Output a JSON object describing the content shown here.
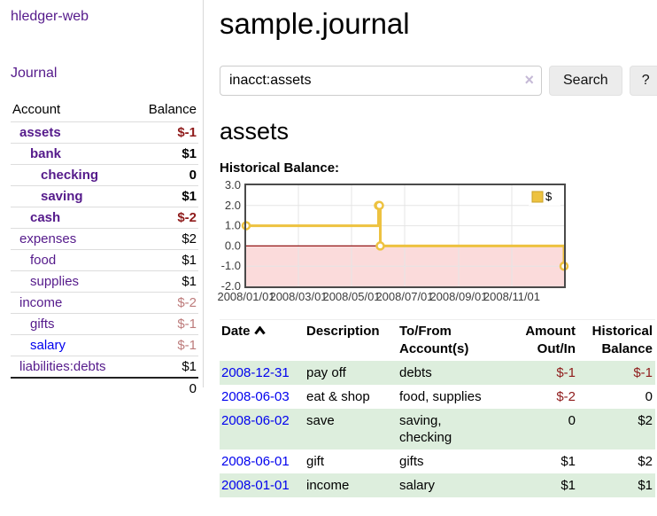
{
  "colors": {
    "link_purple": "#551A8B",
    "link_blue": "#0000EE",
    "negative_dark": "#8f1b1b",
    "negative_soft": "#bd7b7b",
    "row_green": "#ddeedd",
    "chart_line": "#EDC240",
    "chart_negative_fill": "#fbdbdb",
    "chart_zero_line": "#941717"
  },
  "sidebar": {
    "brand": "hledger-web",
    "journal_link": "Journal",
    "accounts_table": {
      "headers": [
        "Account",
        "Balance"
      ],
      "rows": [
        {
          "name": "assets",
          "balance": "$-1",
          "indent": 0,
          "bold": true,
          "neg": "strong"
        },
        {
          "name": "bank",
          "balance": "$1",
          "indent": 1,
          "bold": true,
          "neg": null
        },
        {
          "name": "checking",
          "balance": "0",
          "indent": 2,
          "bold": true,
          "neg": null
        },
        {
          "name": "saving",
          "balance": "$1",
          "indent": 2,
          "bold": true,
          "neg": null
        },
        {
          "name": "cash",
          "balance": "$-2",
          "indent": 1,
          "bold": true,
          "neg": "strong"
        },
        {
          "name": "expenses",
          "balance": "$2",
          "indent": 0,
          "bold": false,
          "neg": null
        },
        {
          "name": "food",
          "balance": "$1",
          "indent": 1,
          "bold": false,
          "neg": null
        },
        {
          "name": "supplies",
          "balance": "$1",
          "indent": 1,
          "bold": false,
          "neg": null
        },
        {
          "name": "income",
          "balance": "$-2",
          "indent": 0,
          "bold": false,
          "neg": "soft"
        },
        {
          "name": "gifts",
          "balance": "$-1",
          "indent": 1,
          "bold": false,
          "neg": "soft"
        },
        {
          "name": "salary",
          "balance": "$-1",
          "indent": 1,
          "bold": false,
          "neg": "soft",
          "unvisited": true
        },
        {
          "name": "liabilities:debts",
          "balance": "$1",
          "indent": 0,
          "bold": false,
          "neg": null
        }
      ],
      "total": "0"
    }
  },
  "main": {
    "title": "sample.journal",
    "search": {
      "value": "inacct:assets",
      "clear_icon": "×",
      "search_button": "Search",
      "help_button": "?"
    },
    "account_heading": "assets",
    "chart_heading": "Historical Balance:"
  },
  "chart_data": {
    "type": "line",
    "style": "step",
    "title": "Historical Balance:",
    "ylim": [
      -2,
      3
    ],
    "grid": true,
    "y_ticks": [
      "3.0",
      "2.0",
      "1.0",
      "0.0",
      "-1.0",
      "-2.0"
    ],
    "x_ticks": [
      {
        "pos": 0.0,
        "label": "2008/01/01"
      },
      {
        "pos": 0.1644,
        "label": "2008/03/01"
      },
      {
        "pos": 0.3315,
        "label": "2008/05/01"
      },
      {
        "pos": 0.4986,
        "label": "2008/07/01"
      },
      {
        "pos": 0.6685,
        "label": "2008/09/01"
      },
      {
        "pos": 0.8356,
        "label": "2008/11/01"
      }
    ],
    "series": [
      {
        "name": "$",
        "color": "#EDC240",
        "points": [
          {
            "date": "2008-01-01",
            "x": 0.0,
            "y": 1
          },
          {
            "date": "2008-06-01",
            "x": 0.4164,
            "y": 2
          },
          {
            "date": "2008-06-02",
            "x": 0.4192,
            "y": 2
          },
          {
            "date": "2008-06-03",
            "x": 0.4219,
            "y": 0
          },
          {
            "date": "2008-12-31",
            "x": 1.0,
            "y": -1
          }
        ]
      }
    ],
    "legend": {
      "label": "$",
      "position": "top-right"
    },
    "negative_region_color": "#fbdbdb",
    "zero_line_color": "#941717"
  },
  "register": {
    "headers": [
      "Date",
      "Description",
      "To/From Account(s)",
      "Amount Out/In",
      "Historical Balance"
    ],
    "sort": {
      "column": "Date",
      "direction": "ascending"
    },
    "rows": [
      {
        "date": "2008-12-31",
        "description": "pay off",
        "accounts": "debts",
        "amount": "$-1",
        "amount_negative": true,
        "balance": "$-1",
        "balance_negative": true
      },
      {
        "date": "2008-06-03",
        "description": "eat & shop",
        "accounts": "food, supplies",
        "amount": "$-2",
        "amount_negative": true,
        "balance": "0",
        "balance_negative": false
      },
      {
        "date": "2008-06-02",
        "description": "save",
        "accounts": "saving, checking",
        "amount": "0",
        "amount_negative": false,
        "balance": "$2",
        "balance_negative": false
      },
      {
        "date": "2008-06-01",
        "description": "gift",
        "accounts": "gifts",
        "amount": "$1",
        "amount_negative": false,
        "balance": "$2",
        "balance_negative": false
      },
      {
        "date": "2008-01-01",
        "description": "income",
        "accounts": "salary",
        "amount": "$1",
        "amount_negative": false,
        "balance": "$1",
        "balance_negative": false
      }
    ]
  }
}
